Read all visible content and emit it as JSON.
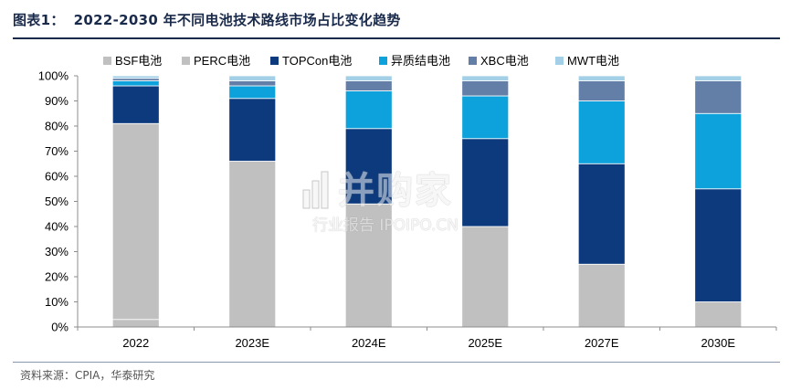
{
  "figure": {
    "label": "图表1：",
    "title": "2022-2030 年不同电池技术路线市场占比变化趋势"
  },
  "source": "资料来源：CPIA，华泰研究",
  "watermark": {
    "main": "并购家",
    "sub": "行业报告 IPOIPO.CN"
  },
  "chart_data": {
    "type": "bar",
    "stacked": true,
    "title": "",
    "xlabel": "",
    "ylabel": "",
    "ylim": [
      0,
      100
    ],
    "yticks": [
      "0%",
      "10%",
      "20%",
      "30%",
      "40%",
      "50%",
      "60%",
      "70%",
      "80%",
      "90%",
      "100%"
    ],
    "grid": false,
    "legend_position": "top",
    "categories": [
      "2022",
      "2023E",
      "2024E",
      "2025E",
      "2027E",
      "2030E"
    ],
    "series": [
      {
        "name": "BSF电池",
        "color": "#c0c0c0",
        "values": [
          3,
          0,
          0,
          0,
          0,
          0
        ]
      },
      {
        "name": "PERC电池",
        "color": "#c0c0c0",
        "values": [
          78,
          66,
          49,
          40,
          25,
          10
        ]
      },
      {
        "name": "TOPCon电池",
        "color": "#0c3a7d",
        "values": [
          15,
          25,
          30,
          35,
          40,
          45
        ]
      },
      {
        "name": "异质结电池",
        "color": "#0ea2dc",
        "values": [
          2,
          5,
          15,
          17,
          25,
          30
        ]
      },
      {
        "name": "XBC电池",
        "color": "#637fa8",
        "values": [
          1,
          2,
          4,
          6,
          8,
          13
        ]
      },
      {
        "name": "MWT电池",
        "color": "#a3d0e6",
        "values": [
          1,
          2,
          2,
          2,
          2,
          2
        ]
      }
    ]
  }
}
